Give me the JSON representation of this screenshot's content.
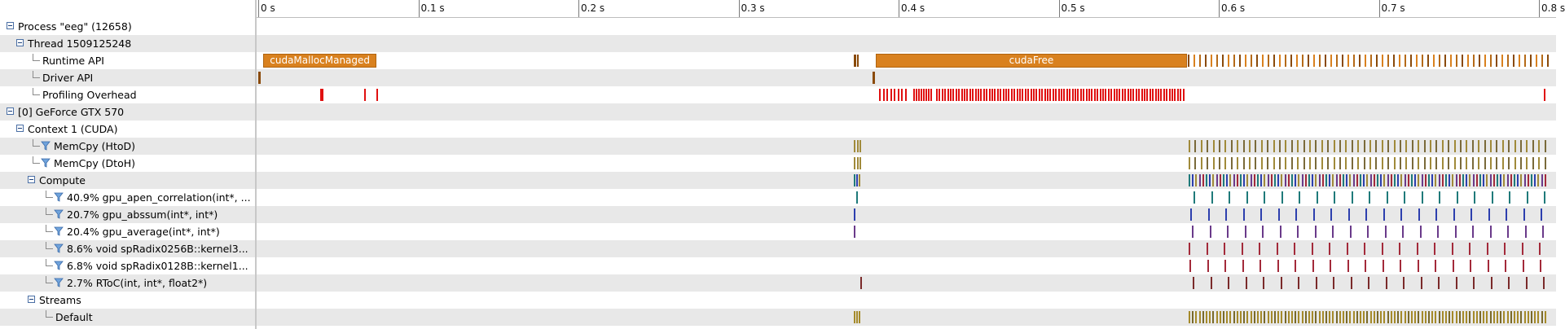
{
  "ruler": {
    "ticks": [
      "0 s",
      "0.1 s",
      "0.2 s",
      "0.3 s",
      "0.4 s",
      "0.5 s",
      "0.6 s",
      "0.7 s",
      "0.8 s"
    ]
  },
  "tree": {
    "rows": [
      {
        "label": "Process \"eeg\" (12658)",
        "kind": "expander",
        "depth": 0
      },
      {
        "label": "Thread 1509125248",
        "kind": "expander",
        "depth": 1
      },
      {
        "label": "Runtime API",
        "kind": "leaf",
        "depth": 2
      },
      {
        "label": "Driver API",
        "kind": "leaf",
        "depth": 2
      },
      {
        "label": "Profiling Overhead",
        "kind": "leaf",
        "depth": 2
      },
      {
        "label": "[0] GeForce GTX 570",
        "kind": "expander",
        "depth": 0
      },
      {
        "label": "Context 1 (CUDA)",
        "kind": "expander",
        "depth": 1
      },
      {
        "label": "MemCpy (HtoD)",
        "kind": "filter",
        "depth": 2
      },
      {
        "label": "MemCpy (DtoH)",
        "kind": "filter",
        "depth": 2
      },
      {
        "label": "Compute",
        "kind": "expander",
        "depth": 2
      },
      {
        "label": "40.9% gpu_apen_correlation(int*, ...",
        "kind": "filter",
        "depth": 3
      },
      {
        "label": "20.7% gpu_abssum(int*, int*)",
        "kind": "filter",
        "depth": 3
      },
      {
        "label": "20.4% gpu_average(int*, int*)",
        "kind": "filter",
        "depth": 3
      },
      {
        "label": "8.6% void spRadix0256B::kernel3...",
        "kind": "filter",
        "depth": 3
      },
      {
        "label": "6.8% void spRadix0128B::kernel1...",
        "kind": "filter",
        "depth": 3
      },
      {
        "label": "2.7% RToC(int, int*, float2*)",
        "kind": "filter",
        "depth": 3
      },
      {
        "label": "Streams",
        "kind": "expander",
        "depth": 2
      },
      {
        "label": "Default",
        "kind": "leaf",
        "depth": 3
      }
    ]
  },
  "timeline": {
    "blocks": {
      "cudaMallocManaged": "cudaMallocManaged",
      "cudaFree": "cudaFree"
    }
  },
  "colors": {
    "api_block": "#d9811f",
    "api_dark": "#8a4a0a",
    "overhead": "#e01010",
    "memcpy": "#a08a3a",
    "compute_teal": "#1f7a7a",
    "compute_blue": "#2d3fae",
    "compute_purple": "#6a3a8a",
    "radix_red": "#a32a3a",
    "rtoc": "#7a2a2a",
    "stream": "#a58a2a",
    "row_alt": "#e8e8e8"
  },
  "icons": {
    "expander": "collapse-minus-icon",
    "filter": "filter-funnel-icon",
    "leaf": "tree-elbow-icon"
  }
}
